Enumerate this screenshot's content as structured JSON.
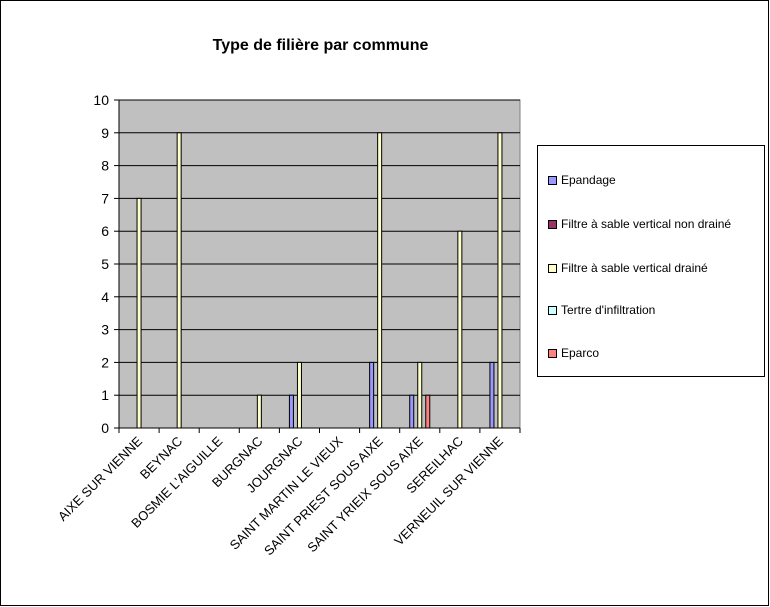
{
  "chart_data": {
    "type": "bar",
    "title": "Type de filière par commune",
    "xlabel": "",
    "ylabel": "",
    "ylim": [
      0,
      10
    ],
    "yticks": [
      0,
      1,
      2,
      3,
      4,
      5,
      6,
      7,
      8,
      9,
      10
    ],
    "grid": true,
    "legend_position": "right",
    "categories": [
      "AIXE SUR VIENNE",
      "BEYNAC",
      "BOSMIE L'AIGUILLE",
      "BURGNAC",
      "JOURGNAC",
      "SAINT MARTIN LE VIEUX",
      "SAINT PRIEST SOUS AIXE",
      "SAINT YRIEIX SOUS AIXE",
      "SEREILHAC",
      "VERNEUIL SUR VIENNE"
    ],
    "series": [
      {
        "name": "Epandage",
        "color": "#9999ff",
        "values": [
          0,
          0,
          0,
          0,
          1,
          0,
          2,
          1,
          0,
          2
        ]
      },
      {
        "name": "Filtre à sable vertical non drainé",
        "color": "#993366",
        "values": [
          0,
          0,
          0,
          0,
          0,
          0,
          0,
          0,
          0,
          0
        ]
      },
      {
        "name": "Filtre à sable vertical drainé",
        "color": "#ffffcc",
        "values": [
          7,
          9,
          0,
          1,
          2,
          0,
          9,
          2,
          6,
          9
        ]
      },
      {
        "name": "Tertre d'infiltration",
        "color": "#ccffff",
        "values": [
          0,
          0,
          0,
          0,
          0,
          0,
          0,
          0,
          0,
          0
        ]
      },
      {
        "name": "Eparco",
        "color": "#ff8080",
        "values": [
          0,
          0,
          0,
          0,
          0,
          0,
          0,
          1,
          0,
          0
        ]
      }
    ],
    "plot_background": "#c0c0c0",
    "gridline_color": "#000000"
  }
}
